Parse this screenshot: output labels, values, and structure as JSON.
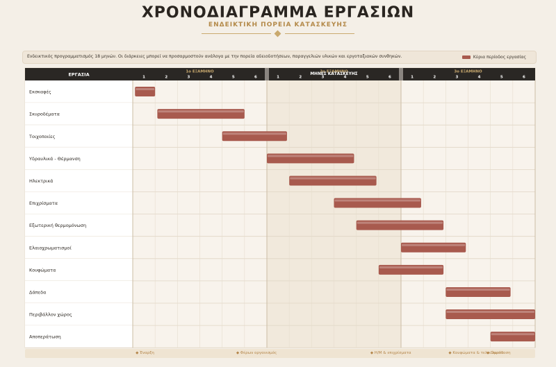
{
  "header": {
    "title": "ΧΡΟΝΟΔΙΑΓΡΑΜΜΑ ΕΡΓΑΣΙΩΝ",
    "subtitle": "ΕΝΔΕΙΚΤΙΚΗ ΠΟΡΕΙΑ ΚΑΤΑΣΚΕΥΗΣ"
  },
  "info": {
    "note": "Ενδεικτικός προγραμματισμός 18 μηνών. Οι διάρκειες μπορεί να προσαρμοστούν ανάλογα με την πορεία αδειοδοτήσεων, παραγγελιών υλικών και εργοταξιακών συνθηκών.",
    "legend_label": "Κύρια περίοδος εργασίας"
  },
  "colors": {
    "bar": "#a85a4e",
    "header_bg": "#2a2724",
    "accent": "#c9a96e",
    "band": "#efe4d2"
  },
  "chart_data": {
    "type": "gantt",
    "task_header": "ΕΡΓΑΣΙΑ",
    "months_header": "ΜΗΝΕΣ ΚΑΤΑΣΚΕΥΗΣ",
    "semesters": [
      {
        "label": "1ο ΕΞΑΜΗΝΟ",
        "months": [
          1,
          2,
          3,
          4,
          5,
          6
        ]
      },
      {
        "label": "2ο ΕΞΑΜΗΝΟ",
        "months": [
          1,
          2,
          3,
          4,
          5,
          6
        ]
      },
      {
        "label": "3ο ΕΞΑΜΗΝΟ",
        "months": [
          1,
          2,
          3,
          4,
          5,
          6
        ]
      }
    ],
    "total_months": 18,
    "tasks": [
      {
        "name": "Εκσκαφές",
        "start": 0.1,
        "end": 1.0
      },
      {
        "name": "Σκυροδέματα",
        "start": 1.1,
        "end": 5.0
      },
      {
        "name": "Τοιχοποιίες",
        "start": 4.0,
        "end": 6.9
      },
      {
        "name": "Υδραυλικά - Θέρμανση",
        "start": 6.0,
        "end": 9.9
      },
      {
        "name": "Ηλεκτρικά",
        "start": 7.0,
        "end": 10.9
      },
      {
        "name": "Επιχρίσματα",
        "start": 9.0,
        "end": 12.9
      },
      {
        "name": "Εξωτερική θερμομόνωση",
        "start": 10.0,
        "end": 13.9
      },
      {
        "name": "Ελαιοχρωματισμοί",
        "start": 12.0,
        "end": 14.9
      },
      {
        "name": "Κουφώματα",
        "start": 11.0,
        "end": 13.9
      },
      {
        "name": "Δάπεδα",
        "start": 14.0,
        "end": 16.9
      },
      {
        "name": "Περιβάλλον χώρος",
        "start": 14.0,
        "end": 18.0
      },
      {
        "name": "Αποπεράτωση",
        "start": 16.0,
        "end": 18.0
      }
    ],
    "milestones": [
      {
        "label": "Έναρξη",
        "month": 0.5
      },
      {
        "label": "Φέρων οργανισμός",
        "month": 5.0
      },
      {
        "label": "Η/Μ & επιχρίσματα",
        "month": 11.0
      },
      {
        "label": "Κουφώματα & τελειώματα",
        "month": 14.5
      },
      {
        "label": "Παράδοση",
        "month": 17.5
      }
    ]
  }
}
